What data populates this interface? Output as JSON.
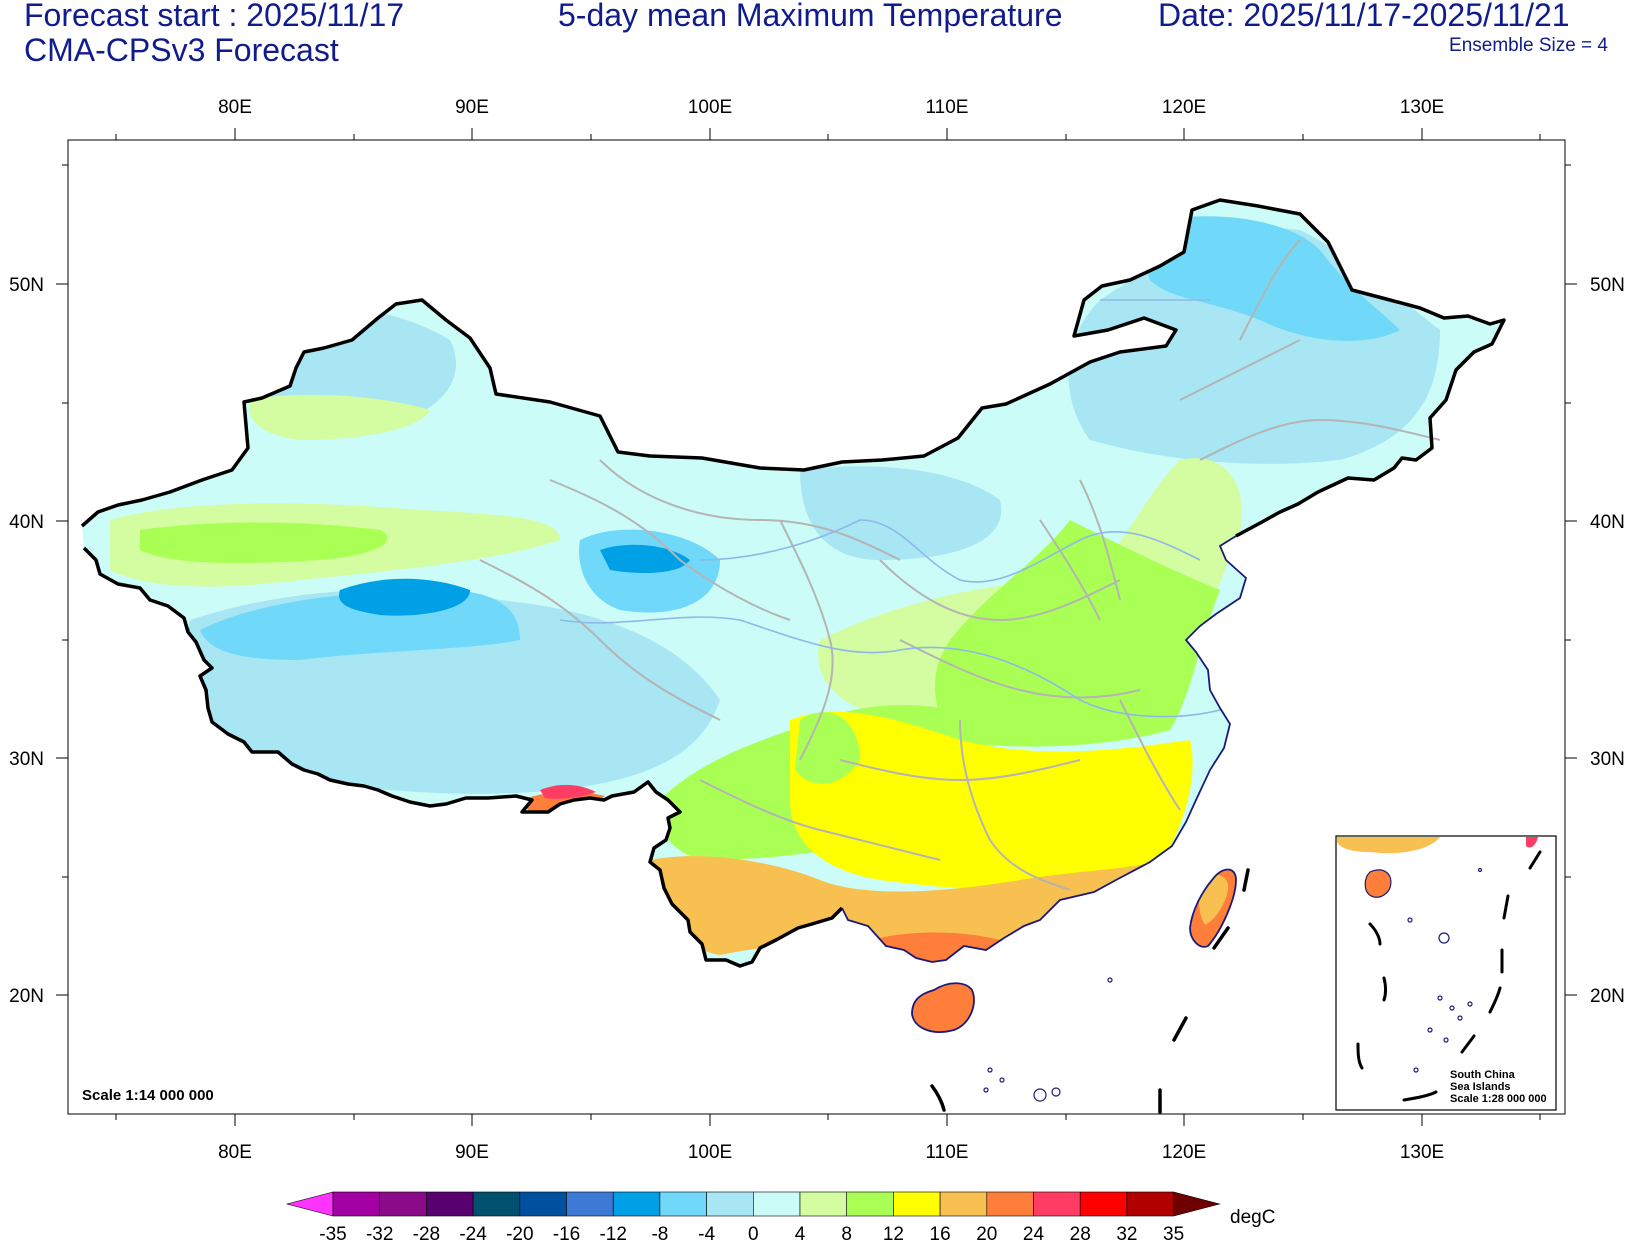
{
  "header": {
    "forecast_start": "Forecast start : 2025/11/17",
    "model": "CMA-CPSv3 Forecast",
    "title": "5-day mean Maximum Temperature",
    "date_range": "Date: 2025/11/17-2025/11/21",
    "ensemble": "Ensemble Size = 4"
  },
  "axes": {
    "lon_labels": [
      "80E",
      "90E",
      "100E",
      "110E",
      "120E",
      "130E"
    ],
    "lat_labels": [
      "50N",
      "40N",
      "30N",
      "20N"
    ]
  },
  "map": {
    "scale_note": "Scale 1:14 000 000",
    "inset_title_1": "South China",
    "inset_title_2": "Sea Islands",
    "inset_scale": "Scale 1:28 000 000"
  },
  "colorbar": {
    "unit": "degC",
    "ticks": [
      "-35",
      "-32",
      "-28",
      "-24",
      "-20",
      "-16",
      "-12",
      "-8",
      "-4",
      "0",
      "4",
      "8",
      "12",
      "16",
      "20",
      "24",
      "28",
      "32",
      "35"
    ],
    "colors": [
      "#ff33ff",
      "#a300a3",
      "#8a0a8a",
      "#58006e",
      "#00506e",
      "#0050a0",
      "#3c7ad6",
      "#00a0e6",
      "#70d8f8",
      "#a8e6f4",
      "#ccfcf8",
      "#d4fca0",
      "#aaff55",
      "#ffff00",
      "#f8c050",
      "#ff7e3a",
      "#ff3c64",
      "#ff0000",
      "#b00000",
      "#6e0000"
    ]
  }
}
